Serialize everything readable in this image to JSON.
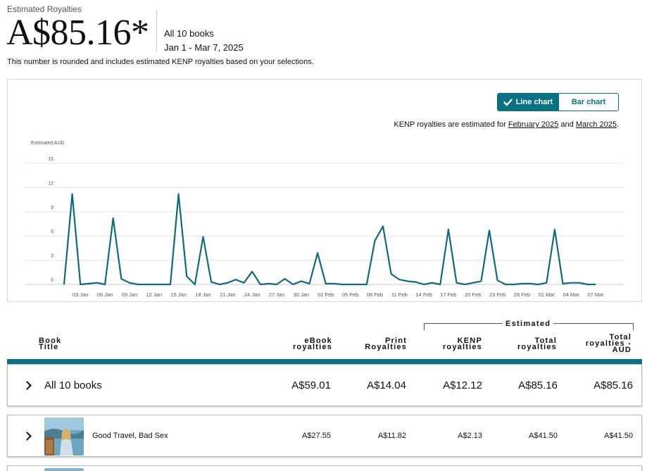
{
  "header": {
    "estimated_label": "Estimated Royalties",
    "amount": "A$85.16*",
    "books_label": "All 10 books",
    "date_range": "Jan 1 - Mar 7, 2025",
    "note": "This number is rounded and includes estimated KENP royalties based on your selections."
  },
  "chart_controls": {
    "line_chart_label": "Line chart",
    "bar_chart_label": "Bar chart",
    "selected": "Line chart"
  },
  "kenp_note": {
    "prefix": "KENP royalties are estimated for ",
    "link1": "February 2025",
    "middle": " and ",
    "link2": "March 2025",
    "suffix": "."
  },
  "chart_data": {
    "type": "line",
    "ylabel": "Estimated AUD",
    "ylim": [
      0,
      15
    ],
    "yticks": [
      "0",
      "3",
      "6",
      "9",
      "12",
      "15"
    ],
    "ytick_values": [
      0,
      3,
      6,
      9,
      12,
      15
    ],
    "xtick_labels": [
      "03 Jan",
      "06 Jan",
      "09 Jan",
      "12 Jan",
      "15 Jan",
      "18 Jan",
      "21 Jan",
      "24 Jan",
      "27 Jan",
      "30 Jan",
      "02 Feb",
      "05 Feb",
      "08 Feb",
      "11 Feb",
      "14 Feb",
      "17 Feb",
      "20 Feb",
      "23 Feb",
      "26 Feb",
      "01 Mar",
      "04 Mar",
      "07 Mar"
    ],
    "xtick_days": [
      3,
      6,
      9,
      12,
      15,
      18,
      21,
      24,
      27,
      30,
      33,
      36,
      39,
      42,
      45,
      48,
      51,
      54,
      57,
      60,
      63,
      66
    ],
    "series": [
      {
        "name": "Estimated AUD",
        "color": "#0e6a80",
        "x": [
          1,
          2,
          3,
          4,
          5,
          6,
          7,
          8,
          9,
          10,
          11,
          12,
          13,
          14,
          15,
          16,
          17,
          18,
          19,
          20,
          21,
          22,
          23,
          24,
          25,
          26,
          27,
          28,
          29,
          30,
          31,
          32,
          33,
          34,
          35,
          36,
          37,
          38,
          39,
          40,
          41,
          42,
          43,
          44,
          45,
          46,
          47,
          48,
          49,
          50,
          51,
          52,
          53,
          54,
          55,
          56,
          57,
          58,
          59,
          60,
          61,
          62,
          63,
          64,
          65,
          66
        ],
        "values": [
          0,
          11.2,
          0,
          0.1,
          0.2,
          0,
          8.2,
          0.7,
          0.2,
          0,
          0,
          0,
          0,
          0,
          11.2,
          1.0,
          0,
          5.9,
          0.3,
          0,
          0.2,
          0.6,
          0.2,
          1.6,
          0,
          0.1,
          0,
          0.7,
          0,
          0.4,
          0.1,
          3.9,
          0.1,
          0.1,
          0,
          0,
          0,
          0,
          5.4,
          7.2,
          1.3,
          0.6,
          0.4,
          0.3,
          0,
          0.2,
          0,
          6.8,
          0.2,
          0,
          0.2,
          0.4,
          6.7,
          0.5,
          0,
          0,
          0.1,
          0.1,
          0,
          0.2,
          6.8,
          0.1,
          0.2,
          0.2,
          0,
          0
        ]
      }
    ]
  },
  "table": {
    "estimated_group_label": "Estimated",
    "columns": {
      "title_l1": "Book",
      "title_l2": "Title",
      "ebook_l1": "eBook",
      "ebook_l2": "royalties",
      "print_l1": "Print",
      "print_l2": "Royalties",
      "kenp_l1": "KENP",
      "kenp_l2": "royalties",
      "total_l1": "Total",
      "total_l2": "royalties",
      "aud_l1": "Total",
      "aud_l2": "royalties -",
      "aud_l3": "AUD"
    },
    "rows": [
      {
        "title": "All 10 books",
        "ebook": "A$59.01",
        "print": "A$14.04",
        "kenp": "A$12.12",
        "total": "A$85.16",
        "aud": "A$85.16"
      },
      {
        "title": "Good Travel, Bad Sex",
        "ebook": "A$27.55",
        "print": "A$11.82",
        "kenp": "A$2.13",
        "total": "A$41.50",
        "aud": "A$41.50"
      }
    ]
  },
  "colors": {
    "accent": "#087182",
    "line": "#0e6a80",
    "grid": "#e3e3e3"
  }
}
